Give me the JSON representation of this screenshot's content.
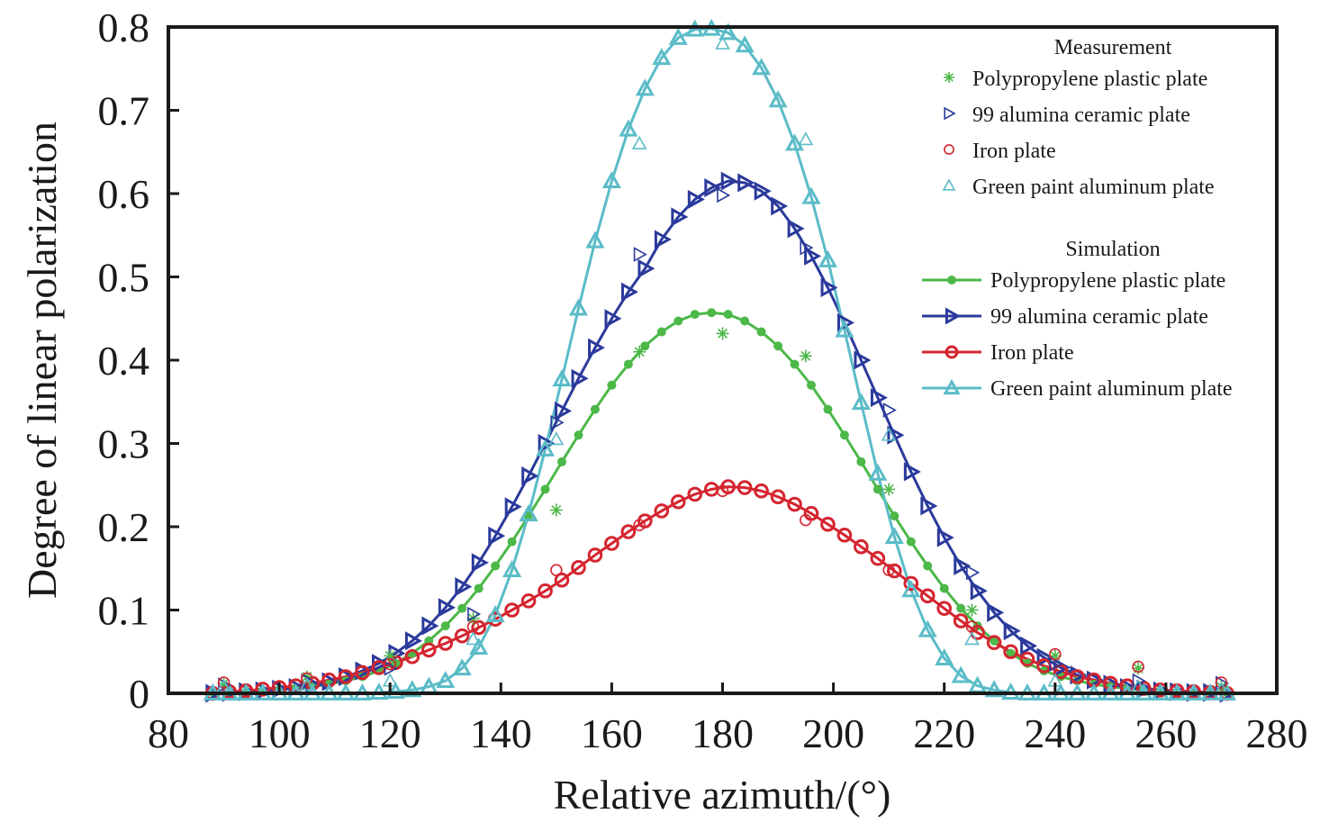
{
  "chart_data": {
    "type": "line",
    "title": "",
    "xlabel": "Relative azimuth/(°)",
    "ylabel": "Degree of linear polarization",
    "xlim": [
      80,
      280
    ],
    "ylim": [
      0,
      0.8
    ],
    "xticks": [
      80,
      100,
      120,
      140,
      160,
      180,
      200,
      220,
      240,
      260,
      280
    ],
    "yticks": [
      0,
      0.1,
      0.2,
      0.3,
      0.4,
      0.5,
      0.6,
      0.7,
      0.8
    ],
    "xtick_labels": [
      "80",
      "100",
      "120",
      "140",
      "160",
      "180",
      "200",
      "220",
      "240",
      "260",
      "280"
    ],
    "ytick_labels": [
      "0",
      "0.1",
      "0.2",
      "0.3",
      "0.4",
      "0.5",
      "0.6",
      "0.7",
      "0.8"
    ],
    "grid": false,
    "legend_position": "top-right",
    "legend": {
      "measurement_heading": "Measurement",
      "simulation_heading": "Simulation"
    },
    "measurement_x": [
      90,
      105,
      120,
      135,
      150,
      165,
      180,
      195,
      210,
      225,
      240,
      255,
      270
    ],
    "simulation_x": [
      88,
      91,
      94,
      97,
      100,
      103,
      106,
      109,
      112,
      115,
      118,
      121,
      124,
      127,
      130,
      133,
      136,
      139,
      142,
      145,
      148,
      151,
      154,
      157,
      160,
      163,
      166,
      169,
      172,
      175,
      178,
      181,
      184,
      187,
      190,
      193,
      196,
      199,
      202,
      205,
      208,
      211,
      214,
      217,
      220,
      223,
      226,
      229,
      232,
      235,
      238,
      241,
      244,
      247,
      250,
      253,
      256,
      259,
      262,
      265,
      268,
      271
    ],
    "series": [
      {
        "name": "Polypropylene plastic plate",
        "color": "#4cb848",
        "marker": "asterisk",
        "measurement": [
          0.012,
          0.02,
          0.045,
          0.09,
          0.22,
          0.41,
          0.432,
          0.405,
          0.245,
          0.1,
          0.045,
          0.03,
          0.008
        ],
        "simulation": [
          0.001,
          0.001,
          0.002,
          0.003,
          0.004,
          0.006,
          0.008,
          0.011,
          0.015,
          0.02,
          0.027,
          0.036,
          0.048,
          0.063,
          0.081,
          0.102,
          0.126,
          0.153,
          0.182,
          0.213,
          0.245,
          0.278,
          0.31,
          0.341,
          0.37,
          0.395,
          0.417,
          0.434,
          0.447,
          0.455,
          0.457,
          0.455,
          0.447,
          0.434,
          0.417,
          0.395,
          0.37,
          0.341,
          0.31,
          0.278,
          0.245,
          0.213,
          0.182,
          0.153,
          0.126,
          0.102,
          0.081,
          0.063,
          0.048,
          0.036,
          0.027,
          0.02,
          0.015,
          0.011,
          0.008,
          0.006,
          0.004,
          0.003,
          0.002,
          0.001,
          0.001,
          0.001
        ]
      },
      {
        "name": "99 alumina ceramic plate",
        "color": "#2b3a9b",
        "marker": "triangle-right",
        "measurement": [
          0.01,
          0.015,
          0.03,
          0.095,
          0.325,
          0.527,
          0.598,
          0.535,
          0.34,
          0.145,
          0.035,
          0.015,
          0.012
        ],
        "simulation": [
          0.0,
          0.001,
          0.002,
          0.003,
          0.005,
          0.007,
          0.01,
          0.014,
          0.02,
          0.027,
          0.036,
          0.048,
          0.063,
          0.081,
          0.103,
          0.128,
          0.157,
          0.189,
          0.224,
          0.261,
          0.3,
          0.339,
          0.378,
          0.415,
          0.45,
          0.482,
          0.51,
          0.545,
          0.572,
          0.593,
          0.607,
          0.615,
          0.613,
          0.603,
          0.585,
          0.558,
          0.525,
          0.487,
          0.445,
          0.4,
          0.355,
          0.31,
          0.266,
          0.225,
          0.187,
          0.153,
          0.123,
          0.097,
          0.075,
          0.057,
          0.043,
          0.031,
          0.022,
          0.016,
          0.011,
          0.007,
          0.005,
          0.003,
          0.002,
          0.001,
          0.001,
          0.0
        ]
      },
      {
        "name": "Iron plate",
        "color": "#d4252f",
        "marker": "circle",
        "measurement": [
          0.013,
          0.018,
          0.035,
          0.08,
          0.148,
          0.202,
          0.243,
          0.208,
          0.148,
          0.08,
          0.047,
          0.032,
          0.013
        ],
        "simulation": [
          0.0,
          0.002,
          0.003,
          0.005,
          0.007,
          0.009,
          0.012,
          0.016,
          0.02,
          0.025,
          0.031,
          0.037,
          0.044,
          0.052,
          0.06,
          0.069,
          0.079,
          0.089,
          0.1,
          0.111,
          0.123,
          0.136,
          0.151,
          0.166,
          0.18,
          0.194,
          0.207,
          0.219,
          0.23,
          0.239,
          0.245,
          0.248,
          0.247,
          0.243,
          0.236,
          0.227,
          0.216,
          0.203,
          0.19,
          0.176,
          0.162,
          0.147,
          0.132,
          0.117,
          0.102,
          0.087,
          0.073,
          0.061,
          0.05,
          0.041,
          0.033,
          0.026,
          0.02,
          0.016,
          0.012,
          0.009,
          0.006,
          0.004,
          0.003,
          0.002,
          0.001,
          0.0
        ]
      },
      {
        "name": "Green paint aluminum plate",
        "color": "#5bbcc8",
        "marker": "triangle-up",
        "measurement": [
          0.008,
          0.01,
          0.015,
          0.065,
          0.305,
          0.66,
          0.78,
          0.665,
          0.31,
          0.065,
          0.015,
          0.008,
          0.005
        ],
        "simulation": [
          0.0,
          0.0,
          0.0,
          0.0,
          0.0,
          0.0,
          0.0,
          0.0,
          0.0,
          0.0,
          0.001,
          0.002,
          0.004,
          0.008,
          0.015,
          0.03,
          0.055,
          0.094,
          0.148,
          0.215,
          0.293,
          0.377,
          0.462,
          0.543,
          0.615,
          0.677,
          0.726,
          0.763,
          0.787,
          0.797,
          0.798,
          0.793,
          0.778,
          0.751,
          0.712,
          0.66,
          0.596,
          0.52,
          0.436,
          0.349,
          0.264,
          0.188,
          0.124,
          0.076,
          0.042,
          0.021,
          0.009,
          0.004,
          0.001,
          0.0,
          0.0,
          0.0,
          0.0,
          0.0,
          0.0,
          0.0,
          0.0,
          0.0,
          0.0,
          0.0,
          0.0,
          0.0
        ]
      }
    ]
  }
}
